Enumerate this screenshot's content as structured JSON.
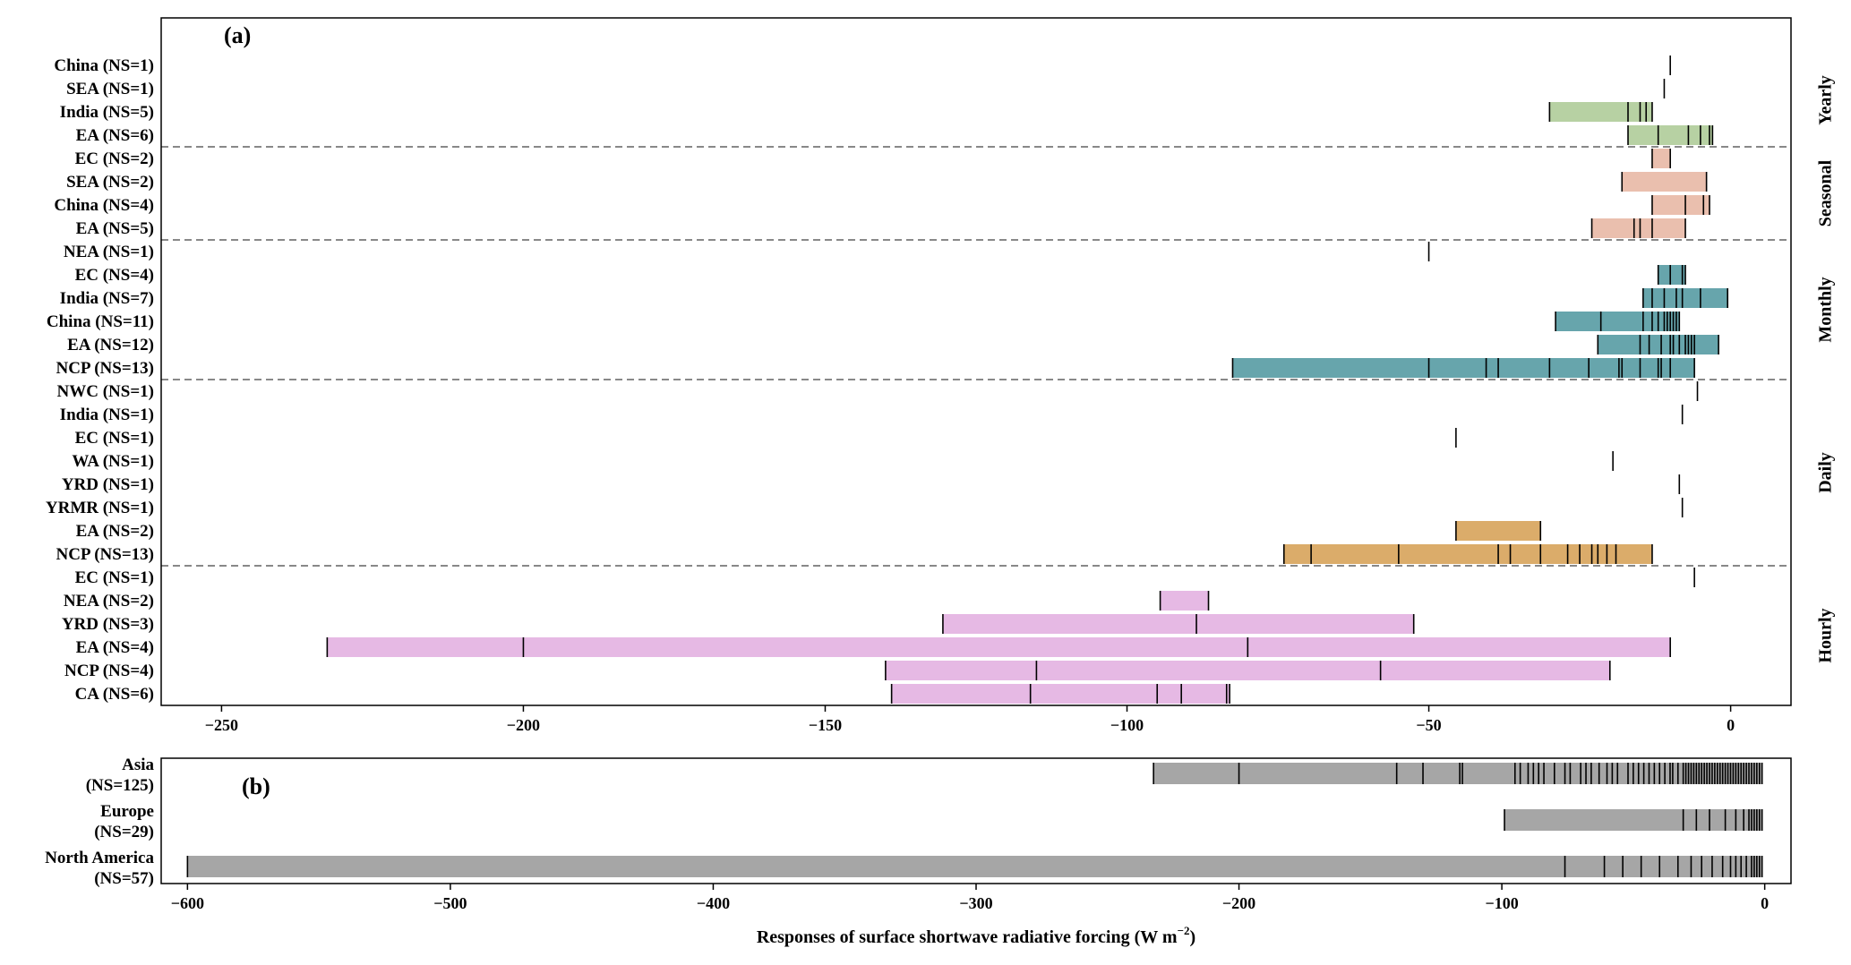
{
  "figure": {
    "xlabel": "Responses of surface shortwave radiative forcing (W m",
    "xlabel_sup": "−2",
    "xlabel_close": ")"
  },
  "chart_data": [
    {
      "type": "bar",
      "panel_label": "(a)",
      "xlim": [
        -260,
        10
      ],
      "xticks": [
        -250,
        -200,
        -150,
        -100,
        -50,
        0
      ],
      "xtick_labels": [
        "−250",
        "−200",
        "−150",
        "−100",
        "−50",
        "0"
      ],
      "grid": false,
      "groups": [
        {
          "name": "Yearly",
          "color": "#b7d1a3",
          "rows": [
            {
              "label": "China (NS=1)",
              "values": [
                -10
              ]
            },
            {
              "label": "SEA (NS=1)",
              "values": [
                -11
              ]
            },
            {
              "label": "India (NS=5)",
              "values": [
                -30,
                -17,
                -15,
                -14,
                -13
              ]
            },
            {
              "label": "EA (NS=6)",
              "values": [
                -17,
                -12,
                -7,
                -5,
                -3.5,
                -3
              ]
            }
          ]
        },
        {
          "name": "Seasonal",
          "color": "#eabfae",
          "rows": [
            {
              "label": "EC (NS=2)",
              "values": [
                -13,
                -10
              ]
            },
            {
              "label": "SEA (NS=2)",
              "values": [
                -18,
                -4
              ]
            },
            {
              "label": "China (NS=4)",
              "values": [
                -13,
                -7.5,
                -4.5,
                -3.5
              ]
            },
            {
              "label": "EA (NS=5)",
              "values": [
                -23,
                -16,
                -15,
                -13,
                -7.5
              ]
            }
          ]
        },
        {
          "name": "Monthly",
          "color": "#67a5ac",
          "rows": [
            {
              "label": "NEA (NS=1)",
              "values": [
                -50
              ]
            },
            {
              "label": "EC (NS=4)",
              "values": [
                -12,
                -10,
                -8,
                -7.5
              ]
            },
            {
              "label": "India (NS=7)",
              "values": [
                -14.5,
                -13,
                -11,
                -9,
                -8,
                -5,
                -0.5
              ]
            },
            {
              "label": "China (NS=11)",
              "values": [
                -29,
                -21.5,
                -14.5,
                -13,
                -12,
                -11,
                -10.5,
                -10,
                -9.5,
                -9,
                -8.5
              ]
            },
            {
              "label": "EA (NS=12)",
              "values": [
                -22,
                -15,
                -13.5,
                -11.5,
                -10,
                -9.5,
                -8.5,
                -7.5,
                -7,
                -6.5,
                -6,
                -2
              ]
            },
            {
              "label": "NCP (NS=13)",
              "values": [
                -82.5,
                -50,
                -40.5,
                -38.5,
                -30,
                -23.5,
                -18.5,
                -18,
                -15,
                -12,
                -11.5,
                -10,
                -6
              ]
            }
          ]
        },
        {
          "name": "Daily",
          "color": "#dbac6a",
          "rows": [
            {
              "label": "NWC (NS=1)",
              "values": [
                -5.5
              ]
            },
            {
              "label": "India (NS=1)",
              "values": [
                -8
              ]
            },
            {
              "label": "EC (NS=1)",
              "values": [
                -45.5
              ]
            },
            {
              "label": "WA (NS=1)",
              "values": [
                -19.5
              ]
            },
            {
              "label": "YRD (NS=1)",
              "values": [
                -8.5
              ]
            },
            {
              "label": "YRMR (NS=1)",
              "values": [
                -8
              ]
            },
            {
              "label": "EA (NS=2)",
              "values": [
                -45.5,
                -31.5
              ]
            },
            {
              "label": "NCP (NS=13)",
              "values": [
                -74,
                -69.5,
                -55,
                -38.5,
                -36.5,
                -31.5,
                -27,
                -25,
                -23,
                -22,
                -20.5,
                -19,
                -13
              ]
            }
          ]
        },
        {
          "name": "Hourly",
          "color": "#e6b9e4",
          "rows": [
            {
              "label": "EC (NS=1)",
              "values": [
                -6
              ]
            },
            {
              "label": "NEA (NS=2)",
              "values": [
                -94.5,
                -86.5
              ]
            },
            {
              "label": "YRD (NS=3)",
              "values": [
                -130.5,
                -88.5,
                -52.5
              ]
            },
            {
              "label": "EA (NS=4)",
              "values": [
                -232.5,
                -200,
                -80,
                -10
              ]
            },
            {
              "label": "NCP (NS=4)",
              "values": [
                -140,
                -115,
                -58,
                -20
              ]
            },
            {
              "label": "CA (NS=6)",
              "values": [
                -139,
                -116,
                -95,
                -91,
                -83.5,
                -83
              ]
            }
          ]
        }
      ]
    },
    {
      "type": "bar",
      "panel_label": "(b)",
      "xlim": [
        -610,
        10
      ],
      "xticks": [
        -600,
        -500,
        -400,
        -300,
        -200,
        -100,
        0
      ],
      "xtick_labels": [
        "−600",
        "−500",
        "−400",
        "−300",
        "−200",
        "−100",
        "0"
      ],
      "grid": false,
      "color": "#a6a6a6",
      "rows": [
        {
          "name": "Asia",
          "ns": "(NS=125)",
          "values": [
            -232.5,
            -200,
            -140,
            -130,
            -116,
            -115,
            -95,
            -93,
            -90,
            -88,
            -86,
            -84,
            -80,
            -76,
            -74,
            -70,
            -68,
            -66,
            -63,
            -60,
            -58,
            -56,
            -52,
            -50,
            -48,
            -46,
            -44,
            -42,
            -40,
            -38,
            -36,
            -35,
            -33,
            -31,
            -30,
            -29,
            -28,
            -27,
            -26,
            -25,
            -24,
            -23,
            -22,
            -21,
            -20,
            -19,
            -18,
            -17,
            -16,
            -15,
            -14,
            -13,
            -12,
            -11,
            -10,
            -9,
            -8,
            -7,
            -6,
            -5,
            -4,
            -3,
            -2,
            -1
          ]
        },
        {
          "name": "Europe",
          "ns": "(NS=29)",
          "values": [
            -99,
            -31,
            -26,
            -21,
            -15,
            -11,
            -8,
            -6,
            -5,
            -4,
            -3,
            -2,
            -1
          ]
        },
        {
          "name": "North America",
          "ns": "(NS=57)",
          "values": [
            -600,
            -76,
            -61,
            -54,
            -47,
            -40,
            -33,
            -28,
            -24,
            -20,
            -16,
            -13,
            -11,
            -9,
            -7,
            -5,
            -4,
            -3,
            -2,
            -1
          ]
        }
      ]
    }
  ]
}
